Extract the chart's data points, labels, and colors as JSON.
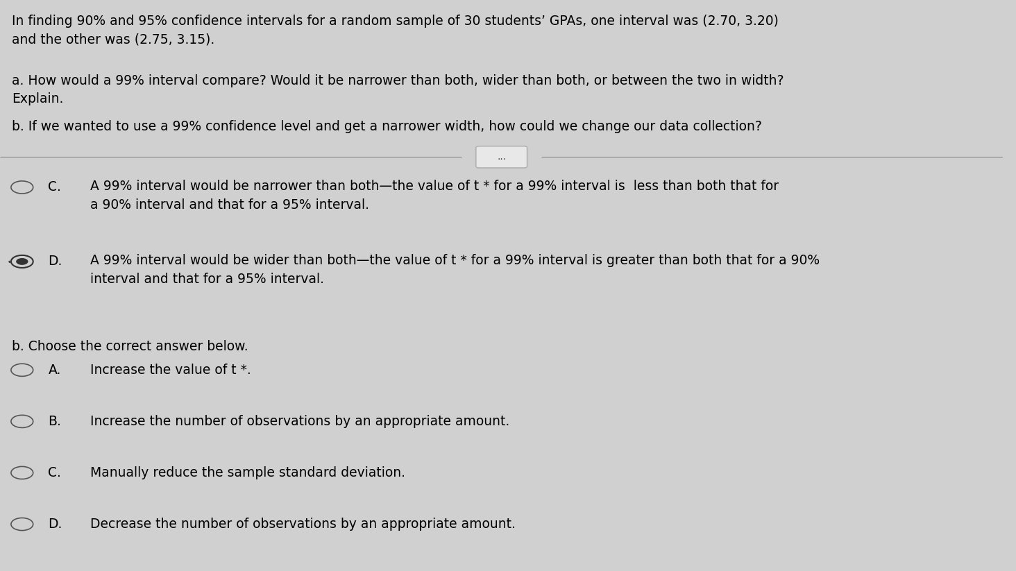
{
  "bg_color": "#d0d0d0",
  "text_color": "#000000",
  "figsize": [
    14.64,
    8.23
  ],
  "dpi": 100,
  "header_text": "In finding 90% and 95% confidence intervals for a random sample of 30 students’ GPAs, one interval was (2.70, 3.20)\nand the other was (2.75, 3.15).",
  "question_a": "a. How would a 99% interval compare? Would it be narrower than both, wider than both, or between the two in width?\nExplain.",
  "question_b": "b. If we wanted to use a 99% confidence level and get a narrower width, how could we change our data collection?",
  "separator_button_text": "...",
  "option_C_label": "C.",
  "option_C_text": "A 99% interval would be narrower than both—the value of t * for a 99% interval is  less than both that for\na 90% interval and that for a 95% interval.",
  "option_D_label": "D.",
  "option_D_text": "A 99% interval would be wider than both—the value of t * for a 99% interval is greater than both that for a 90%\ninterval and that for a 95% interval.",
  "option_D_selected": true,
  "part_b_label": "b. Choose the correct answer below.",
  "part_b_options": [
    {
      "label": "A.",
      "text": "Increase the value of t *."
    },
    {
      "label": "B.",
      "text": "Increase the number of observations by an appropriate amount."
    },
    {
      "label": "C.",
      "text": "Manually reduce the sample standard deviation."
    },
    {
      "label": "D.",
      "text": "Decrease the number of observations by an appropriate amount."
    }
  ],
  "font_size_body": 13.5
}
